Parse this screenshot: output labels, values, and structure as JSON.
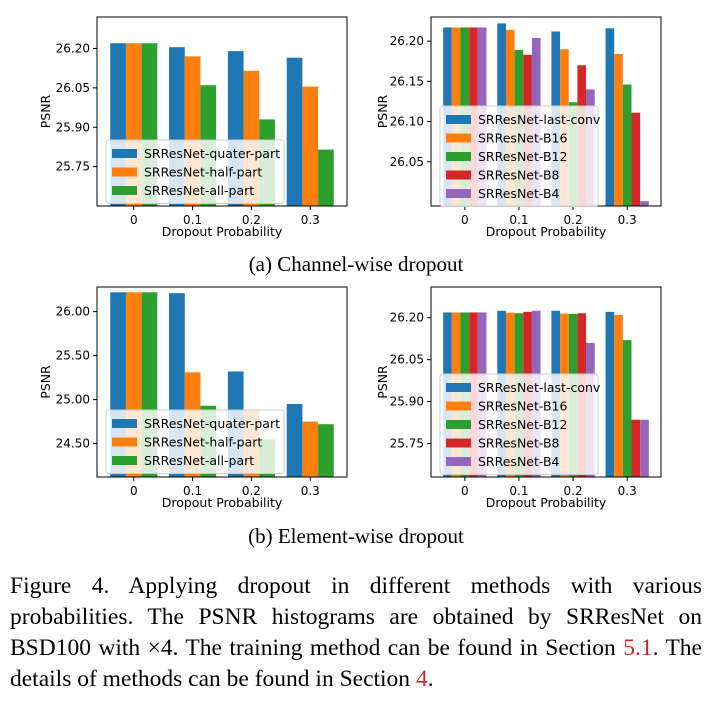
{
  "captions": {
    "sub_a": "(a) Channel-wise dropout",
    "sub_b": "(b) Element-wise dropout",
    "figure_1": "Figure 4.  Applying dropout in different methods with various probabilities. The PSNR histograms are obtained by SRResNet on BSD100 with ×4. The training method can be found in Section ",
    "figure_ref1": "5.1",
    "figure_2": ". The details of methods can be found in Section ",
    "figure_ref2": "4",
    "figure_3": "."
  },
  "colors": {
    "blue": "#1f77b4",
    "orange": "#ff7f0e",
    "green": "#2ca02c",
    "red": "#d62728",
    "purple": "#9467bd",
    "reference_link": "#d0252a"
  },
  "chart_data": [
    {
      "id": "a-left",
      "type": "bar",
      "title": "",
      "xlabel": "Dropout Probability",
      "ylabel": "PSNR",
      "categories": [
        "0",
        "0.1",
        "0.2",
        "0.3"
      ],
      "ylim": [
        25.6,
        26.32
      ],
      "yticks": [
        26.2,
        26.05,
        25.9,
        25.75
      ],
      "ytick_labels": [
        "26.20",
        "26.05",
        "25.90",
        "25.75"
      ],
      "legend_position": "lower-left",
      "series": [
        {
          "name": "SRResNet-quater-part",
          "color": "#1f77b4",
          "values": [
            26.22,
            26.205,
            26.19,
            26.165
          ]
        },
        {
          "name": "SRResNet-half-part",
          "color": "#ff7f0e",
          "values": [
            26.22,
            26.17,
            26.115,
            26.055
          ]
        },
        {
          "name": "SRResNet-all-part",
          "color": "#2ca02c",
          "values": [
            26.22,
            26.06,
            25.93,
            25.815
          ]
        }
      ]
    },
    {
      "id": "a-right",
      "type": "bar",
      "title": "",
      "xlabel": "Dropout Probability",
      "ylabel": "PSNR",
      "categories": [
        "0",
        "0.1",
        "0.2",
        "0.3"
      ],
      "ylim": [
        25.995,
        26.23
      ],
      "yticks": [
        26.2,
        26.15,
        26.1,
        26.05
      ],
      "ytick_labels": [
        "26.20",
        "26.15",
        "26.10",
        "26.05"
      ],
      "legend_position": "lower-left",
      "series": [
        {
          "name": "SRResNet-last-conv",
          "color": "#1f77b4",
          "values": [
            26.217,
            26.222,
            26.212,
            26.216
          ]
        },
        {
          "name": "SRResNet-B16",
          "color": "#ff7f0e",
          "values": [
            26.217,
            26.214,
            26.19,
            26.184
          ]
        },
        {
          "name": "SRResNet-B12",
          "color": "#2ca02c",
          "values": [
            26.217,
            26.189,
            26.124,
            26.146
          ]
        },
        {
          "name": "SRResNet-B8",
          "color": "#d62728",
          "values": [
            26.217,
            26.183,
            26.17,
            26.111
          ]
        },
        {
          "name": "SRResNet-B4",
          "color": "#9467bd",
          "values": [
            26.217,
            26.204,
            26.14,
            26.001
          ]
        }
      ]
    },
    {
      "id": "b-left",
      "type": "bar",
      "title": "",
      "xlabel": "Dropout Probability",
      "ylabel": "PSNR",
      "categories": [
        "0",
        "0.1",
        "0.2",
        "0.3"
      ],
      "ylim": [
        24.12,
        26.28
      ],
      "yticks": [
        26.0,
        25.5,
        25.0,
        24.5
      ],
      "ytick_labels": [
        "26.00",
        "25.50",
        "25.00",
        "24.50"
      ],
      "legend_position": "lower-left",
      "series": [
        {
          "name": "SRResNet-quater-part",
          "color": "#1f77b4",
          "values": [
            26.22,
            26.21,
            25.32,
            24.95
          ]
        },
        {
          "name": "SRResNet-half-part",
          "color": "#ff7f0e",
          "values": [
            26.22,
            25.31,
            24.88,
            24.75
          ]
        },
        {
          "name": "SRResNet-all-part",
          "color": "#2ca02c",
          "values": [
            26.22,
            24.93,
            24.55,
            24.72
          ]
        }
      ]
    },
    {
      "id": "b-right",
      "type": "bar",
      "title": "",
      "xlabel": "Dropout Probability",
      "ylabel": "PSNR",
      "categories": [
        "0",
        "0.1",
        "0.2",
        "0.3"
      ],
      "ylim": [
        25.63,
        26.31
      ],
      "yticks": [
        26.2,
        26.05,
        25.9,
        25.75
      ],
      "ytick_labels": [
        "26.20",
        "26.05",
        "25.90",
        "25.75"
      ],
      "legend_position": "lower-left",
      "series": [
        {
          "name": "SRResNet-last-conv",
          "color": "#1f77b4",
          "values": [
            26.219,
            26.225,
            26.225,
            26.221
          ]
        },
        {
          "name": "SRResNet-B16",
          "color": "#ff7f0e",
          "values": [
            26.219,
            26.218,
            26.215,
            26.21
          ]
        },
        {
          "name": "SRResNet-B12",
          "color": "#2ca02c",
          "values": [
            26.219,
            26.216,
            26.214,
            26.12
          ]
        },
        {
          "name": "SRResNet-B8",
          "color": "#d62728",
          "values": [
            26.219,
            26.221,
            26.216,
            25.835
          ]
        },
        {
          "name": "SRResNet-B4",
          "color": "#9467bd",
          "values": [
            26.219,
            26.225,
            26.11,
            25.835
          ]
        }
      ]
    }
  ]
}
